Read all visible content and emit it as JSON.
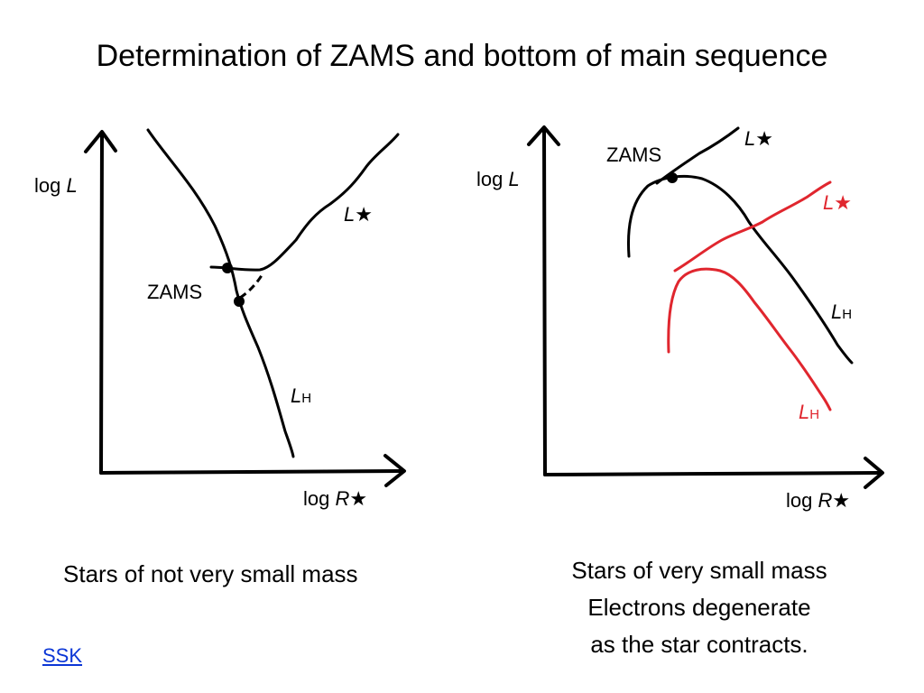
{
  "title": "Determination of ZAMS and bottom of main sequence",
  "left_diagram": {
    "y_axis_label": "log ",
    "y_axis_var": "L",
    "x_axis_label": "log ",
    "x_axis_var": "R",
    "x_axis_star": "★",
    "curve_lstar_var": "L",
    "curve_lstar_star": "★",
    "curve_lh_var": "L",
    "curve_lh_sub": "H",
    "zams_label": "ZAMS",
    "caption": "Stars of not very small mass"
  },
  "right_diagram": {
    "y_axis_label": "log ",
    "y_axis_var": "L",
    "x_axis_label": "log ",
    "x_axis_var": "R",
    "x_axis_star": "★",
    "zams_label": "ZAMS",
    "black_lstar_var": "L",
    "black_lstar_star": "★",
    "black_lh_var": "L",
    "black_lh_sub": "H",
    "red_lstar_var": "L",
    "red_lstar_star": "★",
    "red_lh_var": "L",
    "red_lh_sub": "H",
    "caption_lines": [
      "Stars of very small mass",
      "Electrons degenerate",
      "as the star contracts."
    ]
  },
  "link_text": "SSK",
  "colors": {
    "ink": "#000000",
    "red": "#e0262e",
    "link": "#0b36d6"
  }
}
